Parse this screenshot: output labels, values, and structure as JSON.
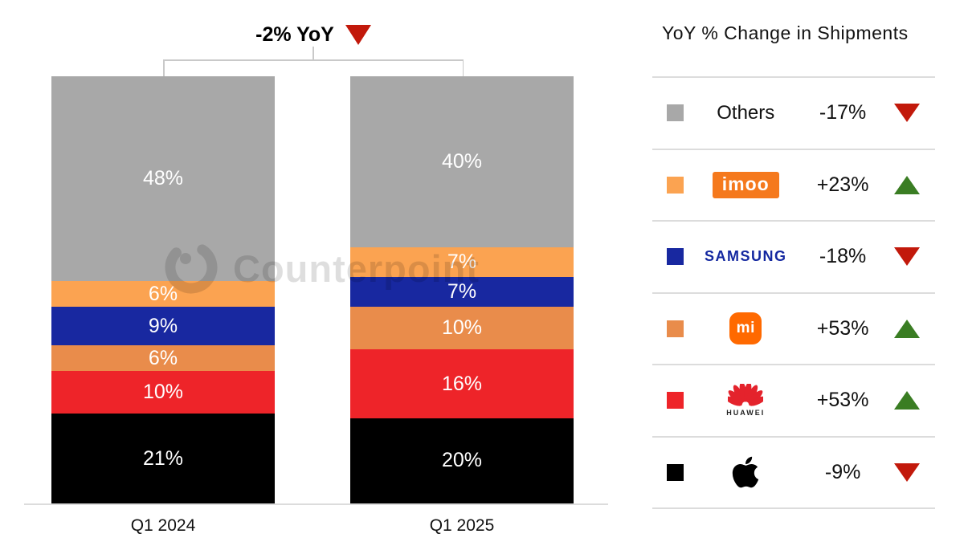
{
  "title": {
    "label": "-2% YoY",
    "direction": "down"
  },
  "watermark": {
    "text": "Counterpoint"
  },
  "colors": {
    "negative": "#C2190B",
    "positive": "#3A7D23",
    "others_gray": "#A8A8A8",
    "imoo_orange": "#FBA351",
    "samsung_blue": "#1828A0",
    "xiaomi_orange": "#E98C4B",
    "huawei_red": "#EE2429",
    "apple_black": "#000000",
    "imoo_logo_orange": "#F5791D",
    "xiaomi_logo_orange": "#FF6900",
    "samsung_wordmark_blue": "#1428A0"
  },
  "chart_data": {
    "type": "bar",
    "stacked": true,
    "unit": "%",
    "title": "-2% YoY",
    "categories": [
      "Q1 2024",
      "Q1 2025"
    ],
    "series": [
      {
        "name": "Apple",
        "color": "#000000",
        "values": [
          21,
          20
        ]
      },
      {
        "name": "Huawei",
        "color": "#EE2429",
        "values": [
          10,
          16
        ]
      },
      {
        "name": "Xiaomi",
        "color": "#E98C4B",
        "values": [
          6,
          10
        ]
      },
      {
        "name": "Samsung",
        "color": "#1828A0",
        "values": [
          9,
          7
        ]
      },
      {
        "name": "imoo",
        "color": "#FBA351",
        "values": [
          6,
          7
        ]
      },
      {
        "name": "Others",
        "color": "#A8A8A8",
        "values": [
          48,
          40
        ]
      }
    ],
    "ylim": [
      0,
      100
    ],
    "grid": false,
    "legend_position": "right"
  },
  "legend": {
    "header": "YoY % Change in Shipments",
    "rows": [
      {
        "brand": "Others",
        "change": "-17%",
        "direction": "down",
        "swatch": "#A8A8A8"
      },
      {
        "brand": "imoo",
        "logo_text": "imoo",
        "change": "+23%",
        "direction": "up",
        "swatch": "#FBA351"
      },
      {
        "brand": "Samsung",
        "logo_text": "SAMSUNG",
        "change": "-18%",
        "direction": "down",
        "swatch": "#1828A0"
      },
      {
        "brand": "Xiaomi",
        "logo_text": "mi",
        "change": "+53%",
        "direction": "up",
        "swatch": "#E98C4B"
      },
      {
        "brand": "Huawei",
        "logo_caption": "HUAWEI",
        "change": "+53%",
        "direction": "up",
        "swatch": "#EE2429"
      },
      {
        "brand": "Apple",
        "change": "-9%",
        "direction": "down",
        "swatch": "#000000"
      }
    ]
  }
}
